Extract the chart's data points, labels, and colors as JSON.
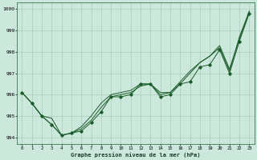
{
  "xlabel": "Graphe pression niveau de la mer (hPa)",
  "background_color": "#cce8dc",
  "grid_color": "#aaccbb",
  "line_color": "#1a5c2a",
  "xlim": [
    -0.5,
    23.5
  ],
  "ylim": [
    993.7,
    1000.3
  ],
  "yticks": [
    994,
    995,
    996,
    997,
    998,
    999,
    1000
  ],
  "xticks": [
    0,
    1,
    2,
    3,
    4,
    5,
    6,
    7,
    8,
    9,
    10,
    11,
    12,
    13,
    14,
    15,
    16,
    17,
    18,
    19,
    20,
    21,
    22,
    23
  ],
  "line1_x": [
    0,
    1,
    2,
    3,
    4,
    5,
    6,
    7,
    8,
    9,
    10,
    11,
    12,
    13,
    14,
    15,
    16,
    17,
    18,
    19,
    20,
    21,
    22,
    23
  ],
  "line1_y": [
    996.1,
    995.6,
    995.0,
    994.6,
    994.1,
    994.2,
    994.3,
    994.7,
    995.2,
    995.9,
    995.9,
    996.0,
    996.5,
    996.5,
    995.9,
    996.0,
    996.5,
    996.6,
    997.3,
    997.4,
    998.1,
    997.0,
    998.5,
    999.8
  ],
  "line2_x": [
    0,
    1,
    2,
    3,
    4,
    5,
    6,
    7,
    8,
    9,
    10,
    11,
    12,
    13,
    14,
    15,
    16,
    17,
    18,
    19,
    20,
    21,
    22,
    23
  ],
  "line2_y": [
    996.1,
    995.6,
    995.0,
    994.6,
    994.1,
    994.2,
    994.4,
    994.8,
    995.4,
    995.9,
    996.0,
    996.1,
    996.4,
    996.5,
    996.0,
    996.1,
    996.5,
    997.0,
    997.5,
    997.8,
    998.2,
    997.1,
    998.7,
    999.9
  ],
  "line3_x": [
    0,
    1,
    2,
    3,
    4,
    5,
    6,
    7,
    8,
    9,
    10,
    11,
    12,
    13,
    14,
    15,
    16,
    17,
    18,
    19,
    20,
    21,
    22,
    23
  ],
  "line3_y": [
    996.1,
    995.6,
    995.0,
    994.9,
    994.1,
    994.2,
    994.5,
    995.0,
    995.6,
    996.0,
    996.1,
    996.2,
    996.5,
    996.5,
    996.1,
    996.1,
    996.6,
    997.1,
    997.5,
    997.8,
    998.3,
    997.2,
    998.6,
    999.9
  ],
  "marker_x": [
    0,
    1,
    2,
    3,
    4,
    5,
    6,
    7,
    8,
    9,
    10,
    11,
    12,
    13,
    14,
    15,
    16,
    17,
    18,
    19,
    20,
    21,
    22,
    23
  ],
  "marker_y": [
    996.1,
    995.6,
    995.0,
    994.6,
    994.1,
    994.2,
    994.3,
    994.7,
    995.2,
    995.9,
    995.9,
    996.0,
    996.5,
    996.5,
    995.9,
    996.0,
    996.5,
    996.6,
    997.3,
    997.4,
    998.1,
    997.0,
    998.5,
    999.8
  ],
  "figsize": [
    3.2,
    2.0
  ],
  "dpi": 100
}
